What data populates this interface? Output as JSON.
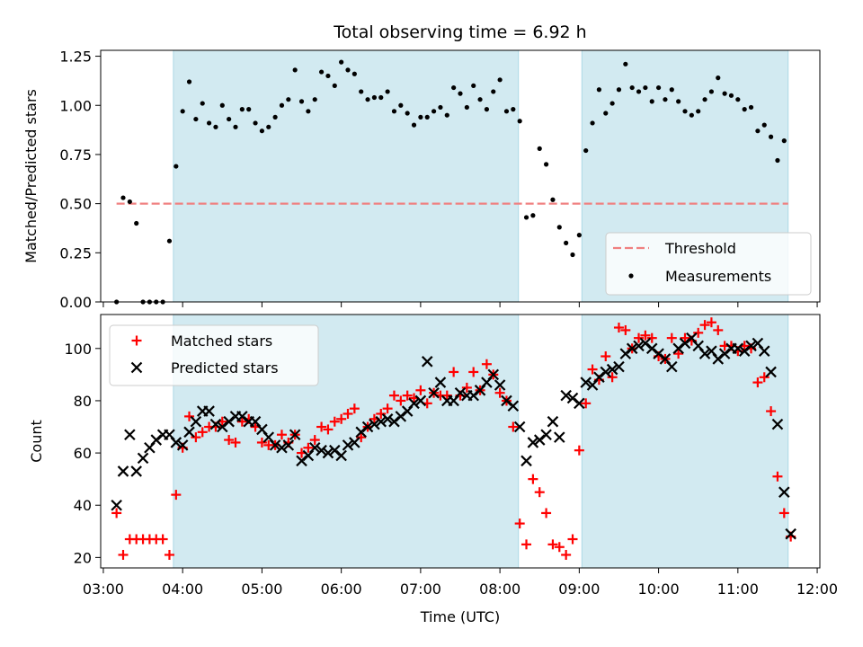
{
  "title": "Total observing time = 6.92 h",
  "colors": {
    "shade": "#add8e6",
    "threshold": "#f08080",
    "measurements": "#000000",
    "matched": "#ff0000",
    "predicted": "#000000"
  },
  "shaded_intervals": [
    [
      "03:53",
      "08:14"
    ],
    [
      "09:02",
      "11:38"
    ]
  ],
  "chart_data": [
    {
      "type": "scatter",
      "ylabel": "Matched/Predicted stars",
      "xlim": [
        "02:58",
        "12:02"
      ],
      "ylim": [
        0,
        1.28
      ],
      "yticks": [
        "0.00",
        "0.25",
        "0.50",
        "0.75",
        "1.00",
        "1.25"
      ],
      "legend_position": "lower-right",
      "threshold": {
        "name": "Threshold",
        "y": 0.5,
        "x_range": [
          "03:10",
          "11:38"
        ]
      },
      "series": [
        {
          "name": "Measurements",
          "x": [
            "03:10",
            "03:15",
            "03:20",
            "03:25",
            "03:30",
            "03:35",
            "03:40",
            "03:45",
            "03:50",
            "03:55",
            "04:00",
            "04:05",
            "04:10",
            "04:15",
            "04:20",
            "04:25",
            "04:30",
            "04:35",
            "04:40",
            "04:45",
            "04:50",
            "04:55",
            "05:00",
            "05:05",
            "05:10",
            "05:15",
            "05:20",
            "05:25",
            "05:30",
            "05:35",
            "05:40",
            "05:45",
            "05:50",
            "05:55",
            "06:00",
            "06:05",
            "06:10",
            "06:15",
            "06:20",
            "06:25",
            "06:30",
            "06:35",
            "06:40",
            "06:45",
            "06:50",
            "06:55",
            "07:00",
            "07:05",
            "07:10",
            "07:15",
            "07:20",
            "07:25",
            "07:30",
            "07:35",
            "07:40",
            "07:45",
            "07:50",
            "07:55",
            "08:00",
            "08:05",
            "08:10",
            "08:15",
            "08:20",
            "08:25",
            "08:30",
            "08:35",
            "08:40",
            "08:45",
            "08:50",
            "08:55",
            "09:00",
            "09:05",
            "09:10",
            "09:15",
            "09:20",
            "09:25",
            "09:30",
            "09:35",
            "09:40",
            "09:45",
            "09:50",
            "09:55",
            "10:00",
            "10:05",
            "10:10",
            "10:15",
            "10:20",
            "10:25",
            "10:30",
            "10:35",
            "10:40",
            "10:45",
            "10:50",
            "10:55",
            "11:00",
            "11:05",
            "11:10",
            "11:15",
            "11:20",
            "11:25",
            "11:30",
            "11:35"
          ],
          "y": [
            0.0,
            0.53,
            0.51,
            0.4,
            0.0,
            0.0,
            0.0,
            0.0,
            0.31,
            0.69,
            0.97,
            1.12,
            0.93,
            1.01,
            0.91,
            0.89,
            1.0,
            0.93,
            0.89,
            0.98,
            0.98,
            0.91,
            0.87,
            0.89,
            0.94,
            1.0,
            1.03,
            1.18,
            1.02,
            0.97,
            1.03,
            1.17,
            1.15,
            1.1,
            1.22,
            1.18,
            1.16,
            1.07,
            1.03,
            1.04,
            1.04,
            1.07,
            0.97,
            1.0,
            0.96,
            0.9,
            0.94,
            0.94,
            0.97,
            0.99,
            0.95,
            1.09,
            1.06,
            0.99,
            1.1,
            1.03,
            0.98,
            1.07,
            1.13,
            0.97,
            0.98,
            0.92,
            0.43,
            0.44,
            0.78,
            0.7,
            0.52,
            0.38,
            0.3,
            0.24,
            0.34,
            0.77,
            0.91,
            1.08,
            0.96,
            1.01,
            1.08,
            1.21,
            1.09,
            1.07,
            1.09,
            1.02,
            1.09,
            1.03,
            1.08,
            1.02,
            0.97,
            0.95,
            0.97,
            1.03,
            1.07,
            1.14,
            1.06,
            1.05,
            1.03,
            0.98,
            0.99,
            0.87,
            0.9,
            0.84,
            0.72,
            0.82
          ]
        }
      ]
    },
    {
      "type": "scatter",
      "xlabel": "Time (UTC)",
      "ylabel": "Count",
      "xlim": [
        "02:58",
        "12:02"
      ],
      "ylim": [
        16,
        113
      ],
      "yticks": [
        "20",
        "40",
        "60",
        "80",
        "100"
      ],
      "xticks": [
        "03:00",
        "04:00",
        "05:00",
        "06:00",
        "07:00",
        "08:00",
        "09:00",
        "10:00",
        "11:00",
        "12:00"
      ],
      "legend_position": "upper-left",
      "series": [
        {
          "name": "Matched stars",
          "x": [
            "03:10",
            "03:15",
            "03:20",
            "03:25",
            "03:30",
            "03:35",
            "03:40",
            "03:45",
            "03:50",
            "03:55",
            "04:00",
            "04:05",
            "04:10",
            "04:15",
            "04:20",
            "04:25",
            "04:30",
            "04:35",
            "04:40",
            "04:45",
            "04:50",
            "04:55",
            "05:00",
            "05:05",
            "05:10",
            "05:15",
            "05:20",
            "05:25",
            "05:30",
            "05:35",
            "05:40",
            "05:45",
            "05:50",
            "05:55",
            "06:00",
            "06:05",
            "06:10",
            "06:15",
            "06:20",
            "06:25",
            "06:30",
            "06:35",
            "06:40",
            "06:45",
            "06:50",
            "06:55",
            "07:00",
            "07:05",
            "07:10",
            "07:15",
            "07:20",
            "07:25",
            "07:30",
            "07:35",
            "07:40",
            "07:45",
            "07:50",
            "07:55",
            "08:00",
            "08:05",
            "08:10",
            "08:15",
            "08:20",
            "08:25",
            "08:30",
            "08:35",
            "08:40",
            "08:45",
            "08:50",
            "08:55",
            "09:00",
            "09:05",
            "09:10",
            "09:15",
            "09:20",
            "09:25",
            "09:30",
            "09:35",
            "09:40",
            "09:45",
            "09:50",
            "09:55",
            "10:00",
            "10:05",
            "10:10",
            "10:15",
            "10:20",
            "10:25",
            "10:30",
            "10:35",
            "10:40",
            "10:45",
            "10:50",
            "10:55",
            "11:00",
            "11:05",
            "11:10",
            "11:15",
            "11:20",
            "11:25",
            "11:30",
            "11:35",
            "11:40"
          ],
          "y": [
            37,
            21,
            27,
            27,
            27,
            27,
            27,
            27,
            21,
            44,
            62,
            74,
            66,
            68,
            70,
            70,
            72,
            65,
            64,
            72,
            73,
            70,
            64,
            63,
            63,
            67,
            64,
            67,
            60,
            62,
            65,
            70,
            69,
            72,
            73,
            75,
            77,
            66,
            70,
            73,
            75,
            77,
            82,
            80,
            82,
            81,
            84,
            79,
            83,
            82,
            82,
            91,
            82,
            85,
            91,
            84,
            94,
            90,
            83,
            80,
            70,
            33,
            25,
            50,
            45,
            37,
            25,
            24,
            21,
            27,
            61,
            79,
            92,
            88,
            97,
            89,
            108,
            107,
            100,
            104,
            105,
            104,
            97,
            96,
            104,
            98,
            104,
            103,
            106,
            109,
            110,
            107,
            101,
            101,
            99,
            101,
            100,
            87,
            89,
            76,
            51,
            37,
            28
          ]
        },
        {
          "name": "Predicted stars",
          "x": [
            "03:10",
            "03:15",
            "03:20",
            "03:25",
            "03:30",
            "03:35",
            "03:40",
            "03:45",
            "03:50",
            "03:55",
            "04:00",
            "04:05",
            "04:10",
            "04:15",
            "04:20",
            "04:25",
            "04:30",
            "04:35",
            "04:40",
            "04:45",
            "04:50",
            "04:55",
            "05:00",
            "05:05",
            "05:10",
            "05:15",
            "05:20",
            "05:25",
            "05:30",
            "05:35",
            "05:40",
            "05:45",
            "05:50",
            "05:55",
            "06:00",
            "06:05",
            "06:10",
            "06:15",
            "06:20",
            "06:25",
            "06:30",
            "06:35",
            "06:40",
            "06:45",
            "06:50",
            "06:55",
            "07:00",
            "07:05",
            "07:10",
            "07:15",
            "07:20",
            "07:25",
            "07:30",
            "07:35",
            "07:40",
            "07:45",
            "07:50",
            "07:55",
            "08:00",
            "08:05",
            "08:10",
            "08:15",
            "08:20",
            "08:25",
            "08:30",
            "08:35",
            "08:40",
            "08:45",
            "08:50",
            "08:55",
            "09:00",
            "09:05",
            "09:10",
            "09:15",
            "09:20",
            "09:25",
            "09:30",
            "09:35",
            "09:40",
            "09:45",
            "09:50",
            "09:55",
            "10:00",
            "10:05",
            "10:10",
            "10:15",
            "10:20",
            "10:25",
            "10:30",
            "10:35",
            "10:40",
            "10:45",
            "10:50",
            "10:55",
            "11:00",
            "11:05",
            "11:10",
            "11:15",
            "11:20",
            "11:25",
            "11:30",
            "11:35",
            "11:40"
          ],
          "y": [
            40,
            53,
            67,
            53,
            58,
            62,
            65,
            67,
            67,
            64,
            63,
            68,
            72,
            76,
            76,
            71,
            70,
            72,
            74,
            74,
            72,
            72,
            69,
            66,
            63,
            62,
            63,
            67,
            57,
            59,
            62,
            61,
            60,
            61,
            59,
            63,
            64,
            68,
            70,
            71,
            72,
            73,
            72,
            74,
            76,
            79,
            80,
            95,
            83,
            87,
            80,
            80,
            83,
            82,
            82,
            84,
            87,
            90,
            86,
            80,
            78,
            70,
            57,
            64,
            65,
            67,
            72,
            66,
            82,
            81,
            79,
            87,
            86,
            89,
            91,
            92,
            93,
            98,
            100,
            101,
            102,
            100,
            98,
            96,
            93,
            100,
            102,
            104,
            101,
            98,
            99,
            96,
            98,
            100,
            100,
            99,
            101,
            102,
            99,
            91,
            71,
            45,
            29
          ]
        }
      ]
    }
  ]
}
